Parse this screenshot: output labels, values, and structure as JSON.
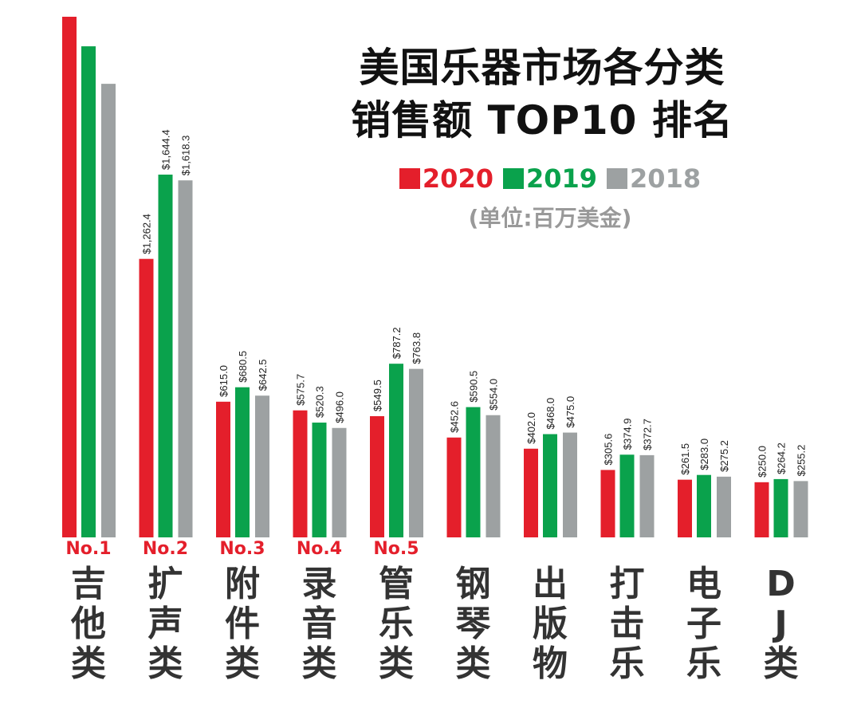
{
  "title_line1": "美国乐器市场各分类",
  "title_line2": "销售额 TOP10 排名",
  "unit": "(单位:百万美金)",
  "colors": {
    "2020": "#e41f2b",
    "2019": "#0aa24c",
    "2018": "#9da1a2"
  },
  "chart_data": {
    "type": "bar",
    "categories": [
      "吉他类",
      "扩声类",
      "附件类",
      "录音类",
      "管乐类",
      "钢琴类",
      "出版物",
      "打击乐",
      "电子乐",
      "DJ类"
    ],
    "ranks": [
      "No.1",
      "No.2",
      "No.3",
      "No.4",
      "No.5",
      "",
      "",
      "",
      "",
      ""
    ],
    "series": [
      {
        "name": "2020",
        "values": [
          2360,
          1262.4,
          615.0,
          575.7,
          549.5,
          452.6,
          402.0,
          305.6,
          261.5,
          250.0
        ],
        "labels": [
          null,
          "$1,262.4",
          "$615.0",
          "$575.7",
          "$549.5",
          "$452.6",
          "$402.0",
          "$305.6",
          "$261.5",
          "$250.0"
        ]
      },
      {
        "name": "2019",
        "values": [
          2226,
          1644.4,
          680.5,
          520.3,
          787.2,
          590.5,
          468.0,
          374.9,
          283.0,
          264.2
        ],
        "labels": [
          null,
          "$1,644.4",
          "$680.5",
          "$520.3",
          "$787.2",
          "$590.5",
          "$468.0",
          "$374.9",
          "$283.0",
          "$264.2"
        ]
      },
      {
        "name": "2018",
        "values": [
          2056,
          1618.3,
          642.5,
          496.0,
          763.8,
          554.0,
          475.0,
          372.7,
          275.2,
          255.2
        ],
        "labels": [
          null,
          "$1,618.3",
          "$642.5",
          "$496.0",
          "$763.8",
          "$554.0",
          "$475.0",
          "$372.7",
          "$275.2",
          "$255.2"
        ]
      }
    ],
    "ylim": [
      0,
      2360
    ],
    "grid": false,
    "legend": "top-right"
  }
}
